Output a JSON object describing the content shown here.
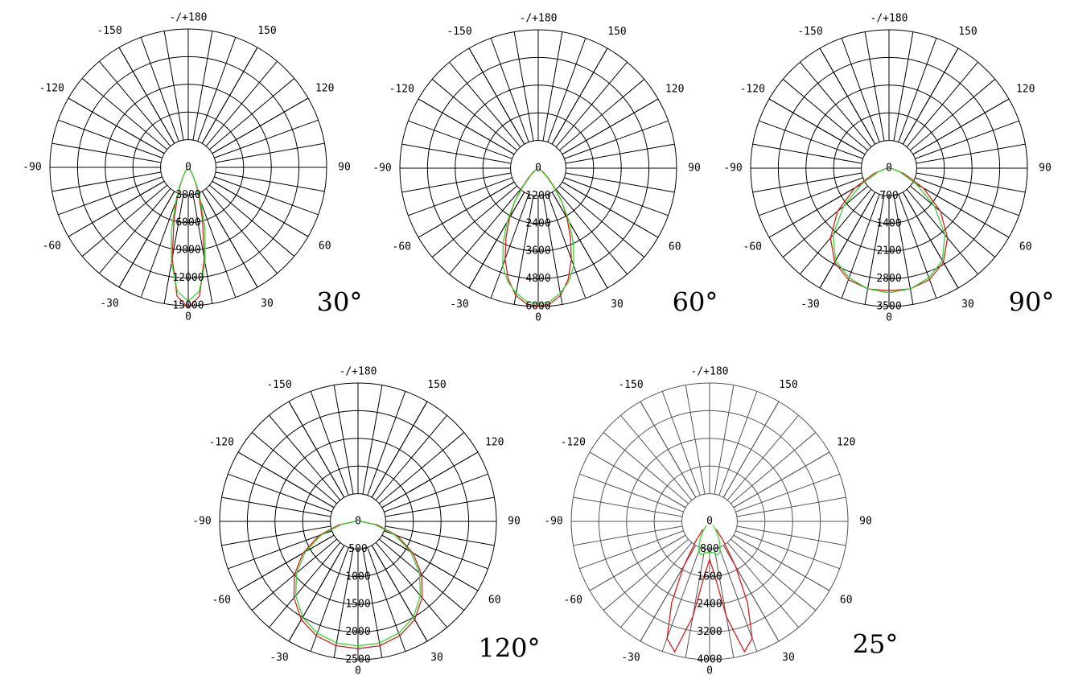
{
  "chart_data": [
    {
      "type": "polar",
      "label": "30°",
      "grid_color": "#000000",
      "xlim": [
        -180,
        180
      ],
      "xticks": [
        {
          "value": 180,
          "label": "-/+180"
        },
        -150,
        150,
        -120,
        120,
        -90,
        90,
        -60,
        60,
        -30,
        30,
        0
      ],
      "ylim": [
        0,
        15000
      ],
      "yticks": [
        0,
        3000,
        6000,
        9000,
        12000,
        15000
      ],
      "x": [
        -40,
        -35,
        -30,
        -25,
        -20,
        -15,
        -10,
        -5,
        0,
        5,
        10,
        15,
        20,
        25,
        30,
        35,
        40
      ],
      "series": [
        {
          "color": "#d42020",
          "values": [
            200,
            500,
            1000,
            2000,
            3500,
            6000,
            10000,
            14000,
            15200,
            14000,
            10000,
            6000,
            3500,
            2000,
            1000,
            500,
            200
          ]
        },
        {
          "color": "#33d633",
          "values": [
            150,
            400,
            1000,
            2200,
            4000,
            7000,
            10500,
            13500,
            14500,
            13500,
            10500,
            7000,
            4000,
            2200,
            1000,
            400,
            150
          ]
        }
      ]
    },
    {
      "type": "polar",
      "label": "60°",
      "grid_color": "#000000",
      "xlim": [
        -180,
        180
      ],
      "xticks": [
        {
          "value": 180,
          "label": "-/+180"
        },
        -150,
        150,
        -120,
        120,
        -90,
        90,
        -60,
        60,
        -30,
        30,
        0
      ],
      "ylim": [
        0,
        6000
      ],
      "yticks": [
        0,
        1200,
        2400,
        3600,
        4800,
        6000
      ],
      "x": [
        -60,
        -55,
        -50,
        -45,
        -40,
        -35,
        -30,
        -25,
        -20,
        -15,
        -10,
        -5,
        0,
        5,
        10,
        15,
        20,
        25,
        30,
        35,
        40,
        45,
        50,
        55,
        60
      ],
      "series": [
        {
          "color": "#d42020",
          "values": [
            50,
            150,
            300,
            600,
            1100,
            1800,
            2500,
            3300,
            4200,
            5000,
            5600,
            5900,
            6000,
            5900,
            5600,
            5000,
            4200,
            3300,
            2500,
            1800,
            1100,
            600,
            300,
            150,
            50
          ]
        },
        {
          "color": "#33d633",
          "values": [
            30,
            80,
            200,
            500,
            1000,
            1800,
            2700,
            3600,
            4500,
            5100,
            5500,
            5800,
            5900,
            5800,
            5500,
            5100,
            4500,
            3600,
            2700,
            1800,
            1000,
            500,
            200,
            80,
            30
          ]
        }
      ]
    },
    {
      "type": "polar",
      "label": "90°",
      "grid_color": "#000000",
      "xlim": [
        -180,
        180
      ],
      "xticks": [
        {
          "value": 180,
          "label": "-/+180"
        },
        -150,
        150,
        -120,
        120,
        -90,
        90,
        -60,
        60,
        -30,
        30,
        0
      ],
      "ylim": [
        0,
        3500
      ],
      "yticks": [
        0,
        700,
        1400,
        2100,
        2800,
        3500
      ],
      "x": [
        -90,
        -80,
        -70,
        -60,
        -50,
        -40,
        -30,
        -20,
        -10,
        0,
        10,
        20,
        30,
        40,
        50,
        60,
        70,
        80,
        90
      ],
      "series": [
        {
          "color": "#d42020",
          "values": [
            0,
            100,
            400,
            1000,
            1700,
            2300,
            2750,
            3000,
            3100,
            3100,
            3100,
            3000,
            2750,
            2300,
            1700,
            1000,
            400,
            100,
            0
          ]
        },
        {
          "color": "#33d633",
          "values": [
            0,
            80,
            300,
            800,
            1500,
            2200,
            2700,
            2950,
            3100,
            3150,
            3100,
            2950,
            2700,
            2200,
            1500,
            800,
            300,
            80,
            0
          ]
        }
      ]
    },
    {
      "type": "polar",
      "label": "120°",
      "grid_color": "#000000",
      "xlim": [
        -180,
        180
      ],
      "xticks": [
        {
          "value": 180,
          "label": "-/+180"
        },
        -150,
        150,
        -120,
        120,
        -90,
        90,
        -60,
        60,
        -30,
        30,
        0
      ],
      "ylim": [
        0,
        2500
      ],
      "yticks": [
        0,
        500,
        1000,
        1500,
        2000,
        2500
      ],
      "x": [
        -90,
        -80,
        -70,
        -60,
        -50,
        -40,
        -30,
        -20,
        -10,
        0,
        10,
        20,
        30,
        40,
        50,
        60,
        70,
        80,
        90
      ],
      "series": [
        {
          "color": "#d42020",
          "values": [
            50,
            350,
            750,
            1150,
            1500,
            1800,
            2050,
            2200,
            2280,
            2300,
            2280,
            2200,
            2050,
            1800,
            1500,
            1150,
            750,
            350,
            50
          ]
        },
        {
          "color": "#33d633",
          "values": [
            30,
            300,
            700,
            1100,
            1450,
            1750,
            2000,
            2150,
            2230,
            2250,
            2230,
            2150,
            2000,
            1750,
            1450,
            1100,
            700,
            300,
            30
          ]
        }
      ]
    },
    {
      "type": "polar",
      "label": "25°",
      "grid_color": "#555555",
      "xlim": [
        -180,
        180
      ],
      "xticks": [
        {
          "value": 180,
          "label": "-/+180"
        },
        -150,
        150,
        -120,
        120,
        -90,
        90,
        -60,
        60,
        -30,
        30,
        0
      ],
      "ylim": [
        0,
        4000
      ],
      "yticks": [
        0,
        800,
        1600,
        2400,
        3200,
        4000
      ],
      "x": [
        -40,
        -35,
        -30,
        -25,
        -20,
        -15,
        -10,
        -5,
        0,
        5,
        10,
        15,
        20,
        25,
        30,
        35,
        40
      ],
      "series": [
        {
          "color": "#d42020",
          "values": [
            300,
            700,
            1500,
            2600,
            3600,
            3900,
            2800,
            1500,
            1100,
            1500,
            2800,
            3900,
            3600,
            2600,
            1500,
            700,
            300
          ]
        },
        {
          "color": "#33d633",
          "values": [
            150,
            300,
            500,
            700,
            900,
            1000,
            950,
            900,
            900,
            900,
            950,
            1000,
            900,
            700,
            500,
            300,
            150
          ]
        }
      ]
    }
  ]
}
